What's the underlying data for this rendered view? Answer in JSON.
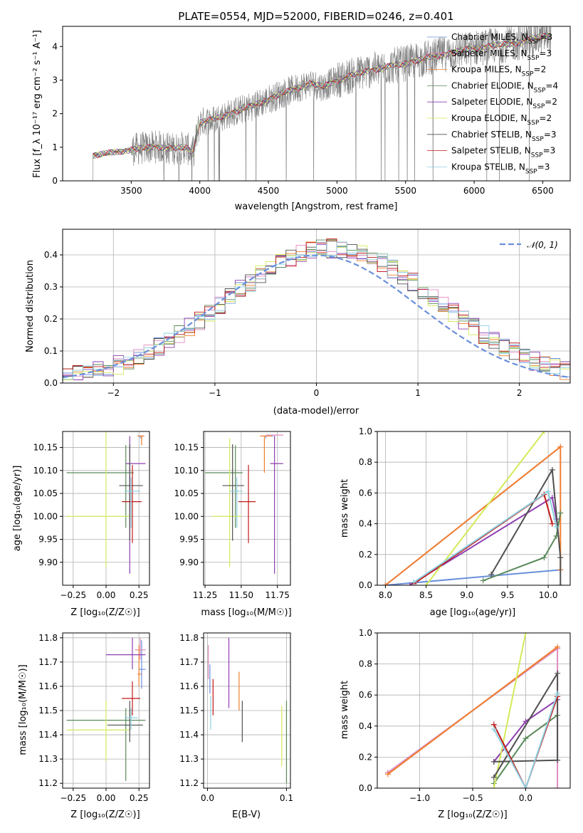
{
  "colors": {
    "Chabrier MILES": "#6a8fdc",
    "Salpeter MILES": "#e08ac0",
    "Kroupa MILES": "#f07f2f",
    "Chabrier ELODIE": "#5a8a5a",
    "Salpeter ELODIE": "#8e3fb0",
    "Kroupa ELODIE": "#d4ea5a",
    "Chabrier STELIB": "#505050",
    "Salpeter STELIB": "#c01818",
    "Kroupa STELIB": "#8ed0e0",
    "data": "#7f7f7f",
    "normal": "#6a8fdc"
  },
  "chart_data": [
    {
      "id": "spectrum",
      "type": "line",
      "title": "PLATE=0554, MJD=52000, FIBERID=0246, z=0.401",
      "xlabel": "wavelength [Angstrom, rest frame]",
      "ylabel": "Flux [f_λ 10⁻¹⁷ erg cm⁻² s⁻¹ A⁻¹]",
      "xlim": [
        3000,
        6700
      ],
      "ylim": [
        0,
        4.6
      ],
      "xticks": [
        3500,
        4000,
        4500,
        5000,
        5500,
        6000,
        6500
      ],
      "yticks": [
        0,
        1,
        2,
        3,
        4
      ],
      "data_range": [
        3220,
        6560
      ],
      "continuum": [
        [
          3220,
          0.75
        ],
        [
          3300,
          0.8
        ],
        [
          3450,
          0.9
        ],
        [
          3600,
          0.98
        ],
        [
          3700,
          1.02
        ],
        [
          3800,
          0.95
        ],
        [
          3900,
          1.0
        ],
        [
          3950,
          0.8
        ],
        [
          4000,
          1.75
        ],
        [
          4100,
          1.82
        ],
        [
          4250,
          2.05
        ],
        [
          4400,
          2.25
        ],
        [
          4600,
          2.6
        ],
        [
          4800,
          2.9
        ],
        [
          4900,
          2.8
        ],
        [
          5000,
          3.0
        ],
        [
          5200,
          3.25
        ],
        [
          5500,
          3.5
        ],
        [
          5700,
          3.7
        ],
        [
          6000,
          3.95
        ],
        [
          6300,
          4.1
        ],
        [
          6560,
          4.35
        ]
      ],
      "legend": [
        {
          "model": "Chabrier MILES",
          "label": "Chabrier MILES, N",
          "n": "=3"
        },
        {
          "model": "Salpeter MILES",
          "label": "Salpeter MILES, N",
          "n": "=3"
        },
        {
          "model": "Kroupa MILES",
          "label": "Kroupa MILES, N",
          "n": "=2"
        },
        {
          "model": "Chabrier ELODIE",
          "label": "Chabrier ELODIE, N",
          "n": "=4"
        },
        {
          "model": "Salpeter ELODIE",
          "label": "Salpeter ELODIE, N",
          "n": "=2"
        },
        {
          "model": "Kroupa ELODIE",
          "label": "Kroupa ELODIE, N",
          "n": "=2"
        },
        {
          "model": "Chabrier STELIB",
          "label": "Chabrier STELIB, N",
          "n": "=3"
        },
        {
          "model": "Salpeter STELIB",
          "label": "Salpeter STELIB, N",
          "n": "=3"
        },
        {
          "model": "Kroupa STELIB",
          "label": "Kroupa STELIB, N",
          "n": "=3"
        }
      ],
      "legend_sub": "SSP",
      "legend_placement": "right"
    },
    {
      "id": "residuals",
      "type": "line",
      "xlabel": "(data-model)/error",
      "ylabel": "Normed distribution",
      "xlim": [
        -2.5,
        2.5
      ],
      "ylim": [
        0,
        0.48
      ],
      "xticks": [
        -2,
        -1,
        0,
        1,
        2
      ],
      "yticks": [
        0.0,
        0.1,
        0.2,
        0.3,
        0.4
      ],
      "grid": true,
      "legend": "𝒩(0, 1)",
      "legend_placement": "top-right",
      "bin_width": 0.1
    },
    {
      "id": "age-vs-Z",
      "type": "scatter",
      "xlabel": "Z [log₁₀(Z/Z☉)]",
      "ylabel": "age  [log₁₀(age/yr)]",
      "xlim": [
        -0.33,
        0.33
      ],
      "ylim": [
        9.85,
        10.185
      ],
      "xticks": [
        -0.25,
        0.0,
        0.25
      ],
      "yticks": [
        9.9,
        9.95,
        10.0,
        10.05,
        10.1,
        10.15
      ],
      "grid": true,
      "points": [
        {
          "model": "Chabrier MILES",
          "x": 0.26,
          "xerr": [
            0.02,
            0.02
          ],
          "y": 10.175,
          "yerr": [
            0.005,
            0.0
          ]
        },
        {
          "model": "Salpeter MILES",
          "x": 0.27,
          "xerr": [
            0.01,
            0.02
          ],
          "y": 10.175,
          "yerr": [
            0.005,
            0.0
          ]
        },
        {
          "model": "Kroupa MILES",
          "x": 0.27,
          "xerr": [
            0.03,
            0.02
          ],
          "y": 10.175,
          "yerr": [
            0.02,
            0.0
          ]
        },
        {
          "model": "Chabrier ELODIE",
          "x": 0.15,
          "xerr": [
            0.45,
            0.06
          ],
          "y": 10.095,
          "yerr": [
            0.12,
            0.06
          ]
        },
        {
          "model": "Salpeter ELODIE",
          "x": 0.18,
          "xerr": [
            0.03,
            0.12
          ],
          "y": 10.115,
          "yerr": [
            0.24,
            0.06
          ]
        },
        {
          "model": "Kroupa ELODIE",
          "x": 0.0,
          "xerr": [
            0.3,
            0.2
          ],
          "y": 10.0,
          "yerr": [
            0.11,
            0.19
          ]
        },
        {
          "model": "Chabrier STELIB",
          "x": 0.18,
          "xerr": [
            0.08,
            0.1
          ],
          "y": 10.067,
          "yerr": [
            0.12,
            0.09
          ]
        },
        {
          "model": "Salpeter STELIB",
          "x": 0.2,
          "xerr": [
            0.08,
            0.07
          ],
          "y": 10.032,
          "yerr": [
            0.09,
            0.08
          ]
        },
        {
          "model": "Kroupa STELIB",
          "x": 0.19,
          "xerr": [
            0.05,
            0.07
          ],
          "y": 10.055,
          "yerr": [
            0.08,
            0.03
          ]
        }
      ]
    },
    {
      "id": "age-vs-mass",
      "type": "scatter",
      "xlabel": "mass [log₁₀(M/M☉)]",
      "xlim": [
        11.24,
        11.84
      ],
      "ylim": [
        9.85,
        10.185
      ],
      "xticks": [
        11.25,
        11.5,
        11.75
      ],
      "yticks": [
        9.9,
        9.95,
        10.0,
        10.05,
        10.1,
        10.15
      ],
      "grid": true,
      "points": [
        {
          "model": "Chabrier MILES",
          "x": 11.67,
          "xerr": [
            0.03,
            0.05
          ],
          "y": 10.175,
          "yerr": [
            0.005,
            0.0
          ]
        },
        {
          "model": "Salpeter MILES",
          "x": 11.73,
          "xerr": [
            0.06,
            0.06
          ],
          "y": 10.177,
          "yerr": [
            0.005,
            0.0
          ]
        },
        {
          "model": "Kroupa MILES",
          "x": 11.66,
          "xerr": [
            0.03,
            0.05
          ],
          "y": 10.175,
          "yerr": [
            0.08,
            0.0
          ]
        },
        {
          "model": "Chabrier ELODIE",
          "x": 11.46,
          "xerr": [
            0.21,
            0.05
          ],
          "y": 10.095,
          "yerr": [
            0.12,
            0.06
          ]
        },
        {
          "model": "Salpeter ELODIE",
          "x": 11.73,
          "xerr": [
            0.03,
            0.06
          ],
          "y": 10.115,
          "yerr": [
            0.24,
            0.06
          ]
        },
        {
          "model": "Kroupa ELODIE",
          "x": 11.42,
          "xerr": [
            0.12,
            0.08
          ],
          "y": 10.0,
          "yerr": [
            0.11,
            0.17
          ]
        },
        {
          "model": "Chabrier STELIB",
          "x": 11.44,
          "xerr": [
            0.07,
            0.08
          ],
          "y": 10.067,
          "yerr": [
            0.12,
            0.09
          ]
        },
        {
          "model": "Salpeter STELIB",
          "x": 11.55,
          "xerr": [
            0.07,
            0.05
          ],
          "y": 10.032,
          "yerr": [
            0.09,
            0.08
          ]
        },
        {
          "model": "Kroupa STELIB",
          "x": 11.47,
          "xerr": [
            0.05,
            0.04
          ],
          "y": 10.055,
          "yerr": [
            0.08,
            0.03
          ]
        }
      ]
    },
    {
      "id": "massweight-vs-age",
      "type": "line",
      "xlabel": "age  [log₁₀(age/yr)]",
      "ylabel": "mass weight",
      "xlim": [
        7.9,
        10.27
      ],
      "ylim": [
        0,
        1
      ],
      "xticks": [
        8.0,
        8.5,
        9.0,
        9.5,
        10.0
      ],
      "yticks": [
        0.0,
        0.2,
        0.4,
        0.6,
        0.8,
        1.0
      ],
      "grid": true,
      "series": [
        {
          "model": "Chabrier MILES",
          "x": [
            8.0,
            10.15
          ],
          "y": [
            0.0,
            0.1
          ]
        },
        {
          "model": "Salpeter MILES",
          "x": [
            8.0,
            10.15
          ],
          "y": [
            0.0,
            0.9
          ]
        },
        {
          "model": "Kroupa MILES",
          "x": [
            8.0,
            10.15,
            10.15
          ],
          "y": [
            0.0,
            0.9,
            0.1
          ]
        },
        {
          "model": "Chabrier ELODIE",
          "x": [
            9.2,
            9.95,
            10.1,
            10.15
          ],
          "y": [
            0.03,
            0.18,
            0.32,
            0.47
          ]
        },
        {
          "model": "Salpeter ELODIE",
          "x": [
            8.3,
            10.05,
            10.1
          ],
          "y": [
            0.0,
            0.57,
            0.43
          ]
        },
        {
          "model": "Kroupa ELODIE",
          "x": [
            8.5,
            9.95
          ],
          "y": [
            0.0,
            1.0
          ]
        },
        {
          "model": "Chabrier STELIB",
          "x": [
            9.3,
            10.05,
            10.15,
            10.15
          ],
          "y": [
            0.07,
            0.75,
            0.18,
            0.0
          ]
        },
        {
          "model": "Salpeter STELIB",
          "x": [
            8.35,
            9.95,
            10.05
          ],
          "y": [
            0.01,
            0.59,
            0.4
          ]
        },
        {
          "model": "Kroupa STELIB",
          "x": [
            8.35,
            10.0,
            10.1
          ],
          "y": [
            0.02,
            0.61,
            0.38
          ]
        }
      ]
    },
    {
      "id": "mass-vs-Z",
      "type": "scatter",
      "xlabel": "Z [log₁₀(Z/Z☉)]",
      "ylabel": "mass [log₁₀(M/M☉)]",
      "xlim": [
        -0.33,
        0.33
      ],
      "ylim": [
        11.18,
        11.82
      ],
      "xticks": [
        -0.25,
        0.0,
        0.25
      ],
      "yticks": [
        11.2,
        11.3,
        11.4,
        11.5,
        11.6,
        11.7,
        11.8
      ],
      "grid": true,
      "points": [
        {
          "model": "Chabrier MILES",
          "x": 0.27,
          "xerr": [
            0.02,
            0.03
          ],
          "y": 11.67,
          "yerr": [
            0.08,
            0.12
          ]
        },
        {
          "model": "Salpeter MILES",
          "x": 0.26,
          "xerr": [
            0.04,
            0.04
          ],
          "y": 11.75,
          "yerr": [
            0.04,
            0.05
          ]
        },
        {
          "model": "Kroupa MILES",
          "x": 0.25,
          "xerr": [
            0.01,
            0.02
          ],
          "y": 11.65,
          "yerr": [
            0.05,
            0.12
          ]
        },
        {
          "model": "Chabrier ELODIE",
          "x": 0.15,
          "xerr": [
            0.45,
            0.15
          ],
          "y": 11.46,
          "yerr": [
            0.25,
            0.05
          ]
        },
        {
          "model": "Salpeter ELODIE",
          "x": 0.2,
          "xerr": [
            0.2,
            0.1
          ],
          "y": 11.73,
          "yerr": [
            0.06,
            0.07
          ]
        },
        {
          "model": "Kroupa ELODIE",
          "x": 0.0,
          "xerr": [
            0.3,
            0.18
          ],
          "y": 11.42,
          "yerr": [
            0.13,
            0.12
          ]
        },
        {
          "model": "Chabrier STELIB",
          "x": 0.18,
          "xerr": [
            0.17,
            0.1
          ],
          "y": 11.44,
          "yerr": [
            0.07,
            0.1
          ]
        },
        {
          "model": "Salpeter STELIB",
          "x": 0.2,
          "xerr": [
            0.08,
            0.06
          ],
          "y": 11.55,
          "yerr": [
            0.07,
            0.07
          ]
        },
        {
          "model": "Kroupa STELIB",
          "x": 0.19,
          "xerr": [
            0.05,
            0.05
          ],
          "y": 11.47,
          "yerr": [
            0.05,
            0.04
          ]
        }
      ]
    },
    {
      "id": "mass-vs-ebv",
      "type": "scatter",
      "xlabel": "E(B-V)",
      "xlim": [
        -0.005,
        0.105
      ],
      "ylim": [
        11.18,
        11.82
      ],
      "xticks": [
        0.0,
        0.1
      ],
      "yticks": [
        11.2,
        11.3,
        11.4,
        11.5,
        11.6,
        11.7,
        11.8
      ],
      "grid": true,
      "points": [
        {
          "model": "Chabrier MILES",
          "x": 0.003,
          "xerr": [
            0,
            0
          ],
          "y": 11.65,
          "yerr": [
            0.08,
            0.04
          ]
        },
        {
          "model": "Salpeter MILES",
          "x": 0.001,
          "xerr": [
            0,
            0
          ],
          "y": 11.7,
          "yerr": [
            0.07,
            0.07
          ]
        },
        {
          "model": "Kroupa MILES",
          "x": 0.04,
          "xerr": [
            0,
            0
          ],
          "y": 11.58,
          "yerr": [
            0.08,
            0.08
          ]
        },
        {
          "model": "Chabrier ELODIE",
          "x": 0.1,
          "xerr": [
            0,
            0
          ],
          "y": 11.35,
          "yerr": [
            0.15,
            0.19
          ]
        },
        {
          "model": "Salpeter ELODIE",
          "x": 0.027,
          "xerr": [
            0,
            0
          ],
          "y": 11.65,
          "yerr": [
            0.14,
            0.15
          ]
        },
        {
          "model": "Kroupa ELODIE",
          "x": 0.094,
          "xerr": [
            0,
            0
          ],
          "y": 11.4,
          "yerr": [
            0.13,
            0.12
          ]
        },
        {
          "model": "Chabrier STELIB",
          "x": 0.044,
          "xerr": [
            0,
            0
          ],
          "y": 11.45,
          "yerr": [
            0.08,
            0.09
          ]
        },
        {
          "model": "Salpeter STELIB",
          "x": 0.007,
          "xerr": [
            0,
            0
          ],
          "y": 11.55,
          "yerr": [
            0.07,
            0.08
          ]
        },
        {
          "model": "Kroupa STELIB",
          "x": 0.004,
          "xerr": [
            0,
            0
          ],
          "y": 11.5,
          "yerr": [
            0.08,
            0.06
          ]
        }
      ]
    },
    {
      "id": "massweight-vs-Z",
      "type": "line",
      "xlabel": "Z [log₁₀(Z/Z☉)]",
      "ylabel": "mass weight",
      "xlim": [
        -1.4,
        0.42
      ],
      "ylim": [
        0,
        1
      ],
      "xticks": [
        -1.0,
        -0.5,
        0.0
      ],
      "yticks": [
        0.0,
        0.2,
        0.4,
        0.6,
        0.8,
        1.0
      ],
      "grid": true,
      "series": [
        {
          "model": "Chabrier MILES",
          "x": [
            -1.3,
            0.3
          ],
          "y": [
            0.1,
            0.9
          ]
        },
        {
          "model": "Salpeter MILES",
          "x": [
            -1.3,
            0.3,
            0.3
          ],
          "y": [
            0.1,
            0.9,
            0.0
          ]
        },
        {
          "model": "Kroupa MILES",
          "x": [
            -1.3,
            0.3
          ],
          "y": [
            0.09,
            0.91
          ]
        },
        {
          "model": "Chabrier ELODIE",
          "x": [
            -0.3,
            0.0,
            0.3
          ],
          "y": [
            0.03,
            0.32,
            0.47
          ]
        },
        {
          "model": "Salpeter ELODIE",
          "x": [
            -0.3,
            0.0,
            0.3
          ],
          "y": [
            0.17,
            0.43,
            0.57
          ]
        },
        {
          "model": "Kroupa ELODIE",
          "x": [
            -0.3,
            0.0
          ],
          "y": [
            0.0,
            1.0
          ]
        },
        {
          "model": "Chabrier STELIB",
          "x": [
            -0.3,
            0.3,
            0.3,
            -0.3
          ],
          "y": [
            0.07,
            0.74,
            0.18,
            0.17
          ]
        },
        {
          "model": "Salpeter STELIB",
          "x": [
            -0.3,
            0.0,
            0.3
          ],
          "y": [
            0.41,
            0.0,
            0.59
          ]
        },
        {
          "model": "Kroupa STELIB",
          "x": [
            -0.3,
            0.0,
            0.3
          ],
          "y": [
            0.38,
            0.0,
            0.61
          ]
        }
      ]
    }
  ]
}
